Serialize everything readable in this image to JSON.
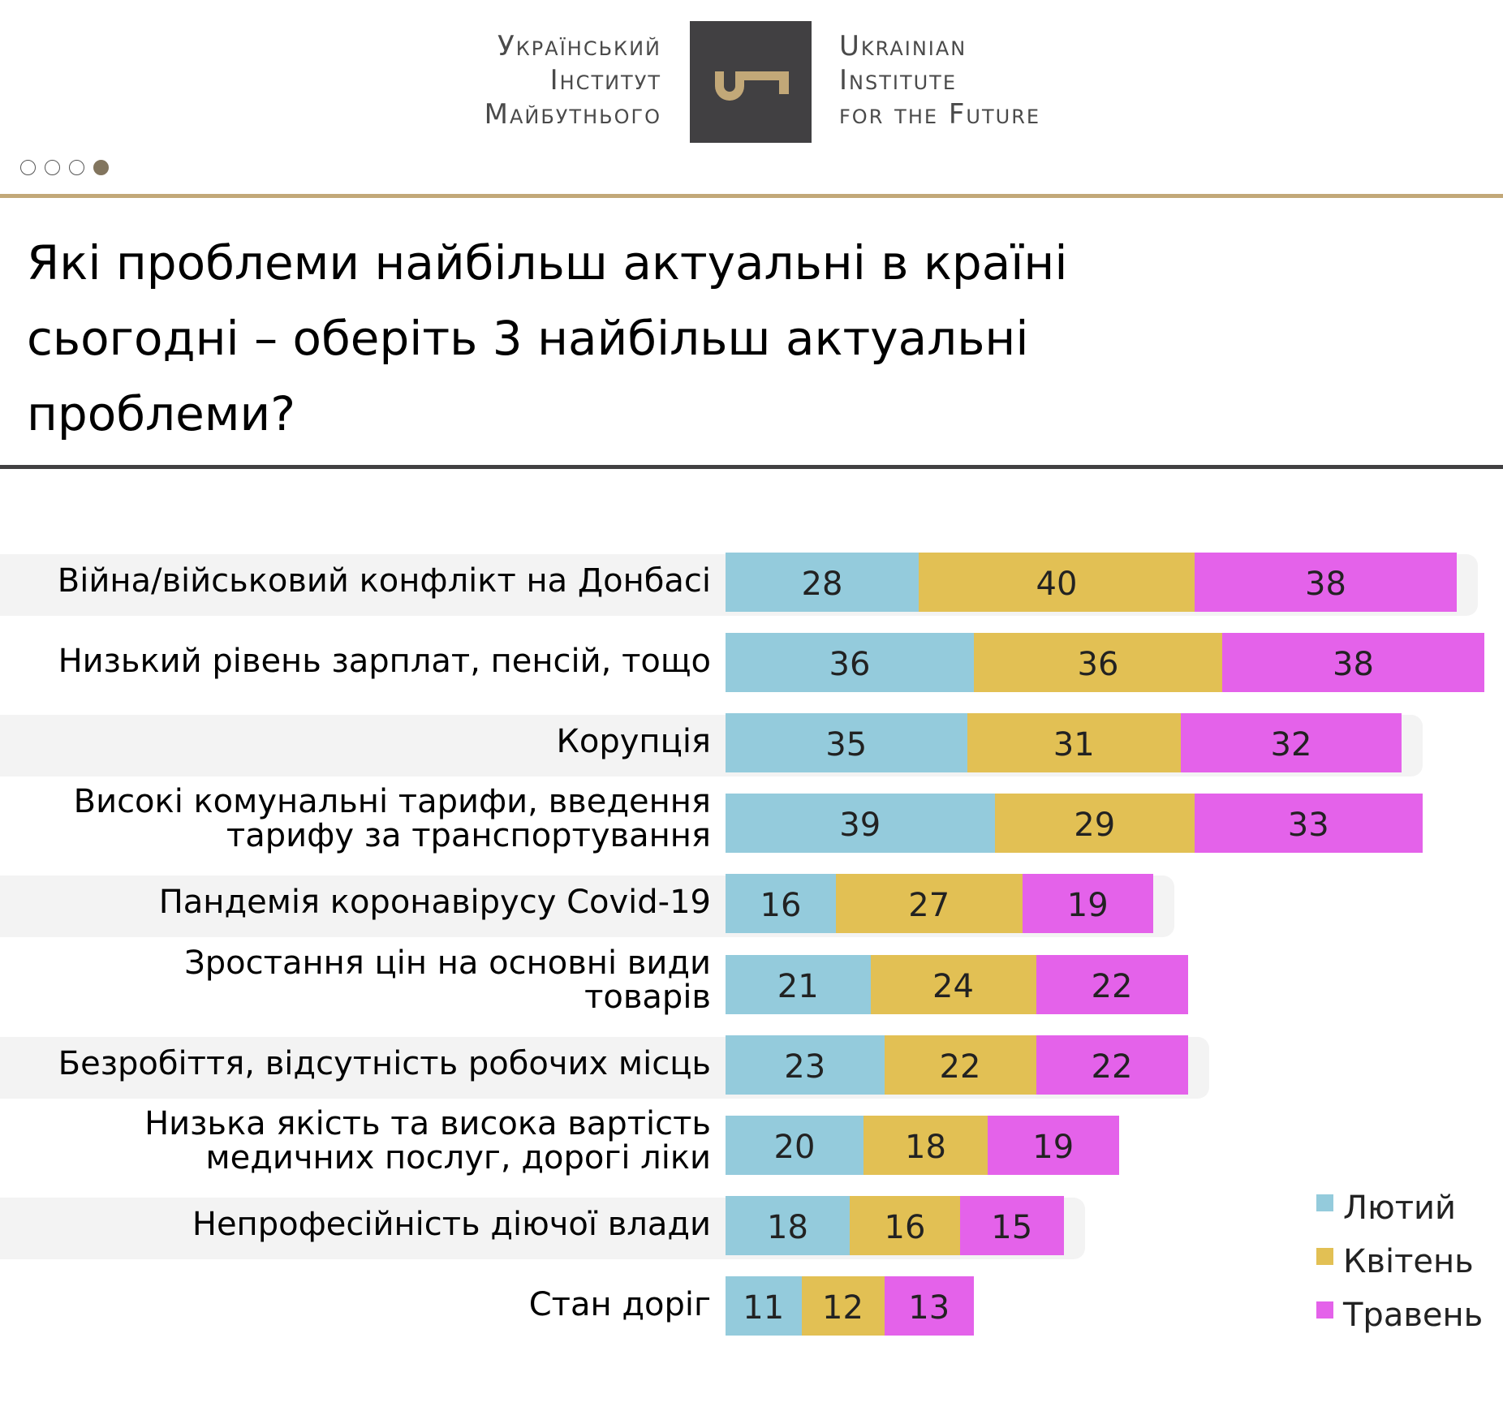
{
  "header": {
    "logo_left_lines": [
      "Український",
      "Інститут",
      "Майбутнього"
    ],
    "logo_right_lines": [
      "Ukrainian",
      "Institute",
      "for the Future"
    ],
    "logo_icon": "key-icon",
    "pager": {
      "total": 4,
      "active_index": 3
    }
  },
  "colors": {
    "lyutyi": "#94cbdc",
    "kviten": "#e2c054",
    "traven": "#e462ea",
    "band": "#f3f3f3",
    "gold_rule": "#c2a878",
    "dark_rule": "#414042",
    "logo_box": "#414042",
    "key": "#c2a878",
    "active_dot": "#82755e"
  },
  "chart_data": {
    "type": "bar",
    "orientation": "horizontal",
    "stacked": true,
    "title": "Які проблеми найбільш актуальні в країні сьогодні – оберіть 3 найбільш актуальні проблеми?",
    "title_lines": [
      "Які проблеми найбільш актуальні в країні",
      "сьогодні – оберіть 3 найбільш актуальні",
      "проблеми?"
    ],
    "xlabel": "",
    "ylabel": "",
    "legend_position": "bottom-right",
    "grid": false,
    "categories": [
      [
        "Війна/військовий конфлікт на Донбасі"
      ],
      [
        "Низький рівень зарплат, пенсій, тощо"
      ],
      [
        "Корупція"
      ],
      [
        "Високі комунальні тарифи, введення",
        "тарифу за транспортування"
      ],
      [
        "Пандемія коронавірусу Covid-19"
      ],
      [
        "Зростання цін на основні види",
        "товарів"
      ],
      [
        "Безробіття, відсутність робочих місць"
      ],
      [
        "Низька якість та висока вартість",
        "медичних послуг, дорогі ліки"
      ],
      [
        "Непрофесійність діючої влади"
      ],
      [
        "Стан доріг"
      ]
    ],
    "series": [
      {
        "name": "Лютий",
        "color_key": "lyutyi",
        "values": [
          28,
          36,
          35,
          39,
          16,
          21,
          23,
          20,
          18,
          11
        ]
      },
      {
        "name": "Квітень",
        "color_key": "kviten",
        "values": [
          40,
          36,
          31,
          29,
          27,
          24,
          22,
          18,
          16,
          12
        ]
      },
      {
        "name": "Травень",
        "color_key": "traven",
        "values": [
          38,
          38,
          32,
          33,
          19,
          22,
          22,
          19,
          15,
          13
        ]
      }
    ]
  }
}
